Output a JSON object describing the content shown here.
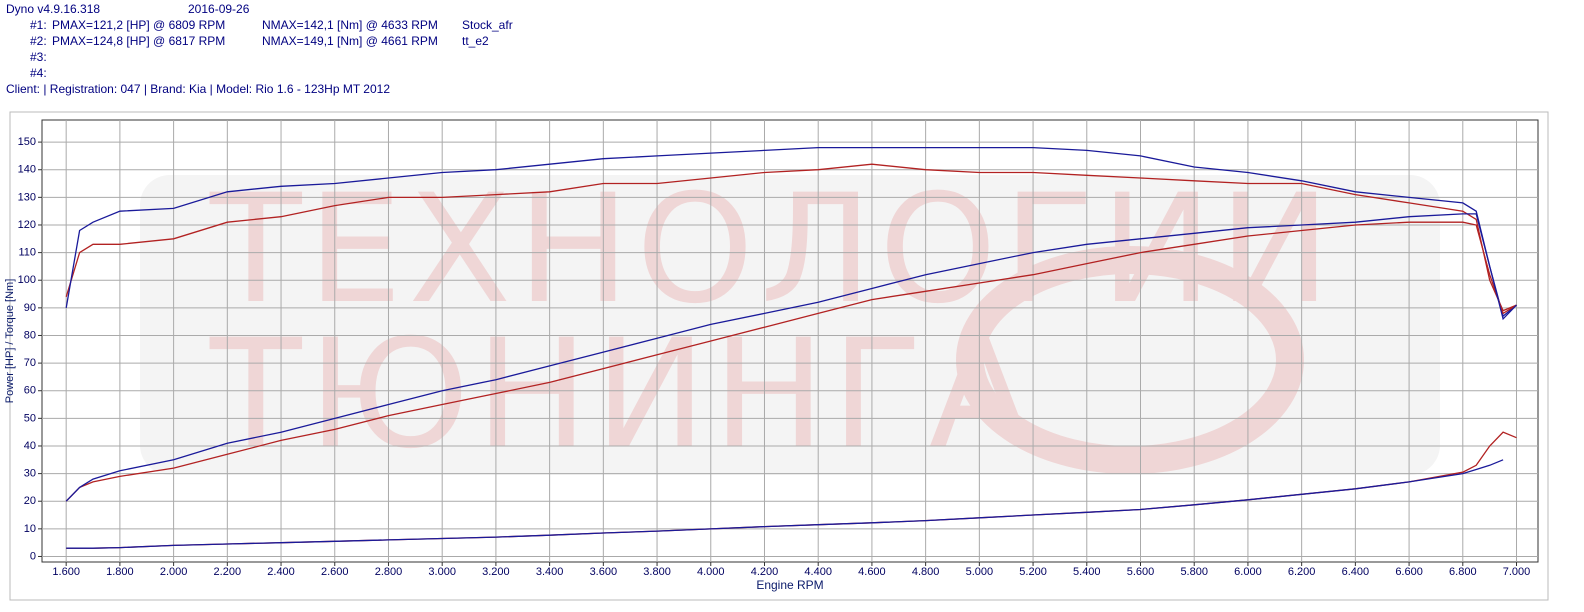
{
  "header": {
    "app": "Dyno v4.9.16.318",
    "date": "2016-09-26",
    "runs": [
      {
        "id": "#1:",
        "pmax": "PMAX=121,2 [HP] @ 6809 RPM",
        "nmax": "NMAX=142,1 [Nm] @ 4633 RPM",
        "name": "Stock_afr"
      },
      {
        "id": "#2:",
        "pmax": "PMAX=124,8 [HP] @ 6817 RPM",
        "nmax": "NMAX=149,1 [Nm] @ 4661 RPM",
        "name": "tt_e2"
      },
      {
        "id": "#3:"
      },
      {
        "id": "#4:"
      }
    ],
    "client": "Client:   | Registration: 047 | Brand: Kia | Model: Rio 1.6 - 123Hp MT 2012"
  },
  "watermark": [
    "ТЕХНОЛОГИИ",
    "ТЮНИНГА"
  ],
  "chart_data": {
    "type": "line",
    "x_label": "Engine RPM",
    "y_label": "Power [HP] / Torque [Nm]",
    "x": [
      1600,
      1650,
      1700,
      1800,
      2000,
      2200,
      2400,
      2600,
      2800,
      3000,
      3200,
      3400,
      3600,
      3800,
      4000,
      4200,
      4400,
      4600,
      4800,
      5000,
      5200,
      5400,
      5600,
      5800,
      6000,
      6200,
      6400,
      6600,
      6800,
      6850,
      6900,
      6950,
      7000
    ],
    "series": [
      {
        "color": "#b22222",
        "values": [
          94,
          110,
          113,
          113,
          115,
          121,
          123,
          127,
          130,
          130,
          131,
          132,
          135,
          135,
          137,
          139,
          140,
          142,
          140,
          139,
          139,
          138,
          137,
          136,
          135,
          135,
          131,
          128,
          125,
          122,
          100,
          89,
          91
        ]
      },
      {
        "color": "#1a1a9a",
        "values": [
          90,
          118,
          121,
          125,
          126,
          132,
          134,
          135,
          137,
          139,
          140,
          142,
          144,
          145,
          146,
          147,
          148,
          148,
          148,
          148,
          148,
          147,
          145,
          141,
          139,
          136,
          132,
          130,
          128,
          125,
          105,
          87,
          91
        ]
      },
      {
        "color": "#b22222",
        "values": [
          20,
          25,
          27,
          29,
          32,
          37,
          42,
          46,
          51,
          55,
          59,
          63,
          68,
          73,
          78,
          83,
          88,
          93,
          96,
          99,
          102,
          106,
          110,
          113,
          116,
          118,
          120,
          121,
          121,
          120,
          102,
          88,
          91
        ]
      },
      {
        "color": "#1a1a9a",
        "values": [
          20,
          25,
          28,
          31,
          35,
          41,
          45,
          50,
          55,
          60,
          64,
          69,
          74,
          79,
          84,
          88,
          92,
          97,
          102,
          106,
          110,
          113,
          115,
          117,
          119,
          120,
          121,
          123,
          124,
          124,
          105,
          86,
          91
        ]
      },
      {
        "color": "#b22222",
        "values": [
          3,
          3,
          3,
          3.2,
          4,
          4.5,
          5,
          5.5,
          6,
          6.5,
          7,
          7.7,
          8.5,
          9.2,
          10,
          10.8,
          11.5,
          12.2,
          13,
          14,
          15,
          16,
          17,
          18.7,
          20.5,
          22.5,
          24.5,
          27,
          30.5,
          33,
          40,
          45,
          43
        ]
      },
      {
        "color": "#1a1a9a",
        "values": [
          3,
          3,
          3,
          3.2,
          4,
          4.5,
          5,
          5.5,
          6,
          6.5,
          7,
          7.7,
          8.5,
          9.2,
          10,
          10.8,
          11.5,
          12.2,
          13,
          14,
          15,
          16,
          17,
          18.7,
          20.5,
          22.5,
          24.5,
          27,
          30,
          31.5,
          33,
          35,
          null
        ]
      }
    ],
    "xlim": [
      1510,
      7080
    ],
    "ylim": [
      -2,
      158
    ],
    "xticks": [
      {
        "value": 1600,
        "label": "1.600"
      },
      {
        "value": 1800,
        "label": "1.800"
      },
      {
        "value": 2000,
        "label": "2.000"
      },
      {
        "value": 2200,
        "label": "2.200"
      },
      {
        "value": 2400,
        "label": "2.400"
      },
      {
        "value": 2600,
        "label": "2.600"
      },
      {
        "value": 2800,
        "label": "2.800"
      },
      {
        "value": 3000,
        "label": "3.000"
      },
      {
        "value": 3200,
        "label": "3.200"
      },
      {
        "value": 3400,
        "label": "3.400"
      },
      {
        "value": 3600,
        "label": "3.600"
      },
      {
        "value": 3800,
        "label": "3.800"
      },
      {
        "value": 4000,
        "label": "4.000"
      },
      {
        "value": 4200,
        "label": "4.200"
      },
      {
        "value": 4400,
        "label": "4.400"
      },
      {
        "value": 4600,
        "label": "4.600"
      },
      {
        "value": 4800,
        "label": "4.800"
      },
      {
        "value": 5000,
        "label": "5.000"
      },
      {
        "value": 5200,
        "label": "5.200"
      },
      {
        "value": 5400,
        "label": "5.400"
      },
      {
        "value": 5600,
        "label": "5.600"
      },
      {
        "value": 5800,
        "label": "5.800"
      },
      {
        "value": 6000,
        "label": "6.000"
      },
      {
        "value": 6200,
        "label": "6.200"
      },
      {
        "value": 6400,
        "label": "6.400"
      },
      {
        "value": 6600,
        "label": "6.600"
      },
      {
        "value": 6800,
        "label": "6.800"
      },
      {
        "value": 7000,
        "label": "7.000"
      }
    ],
    "yticks": [
      0,
      10,
      20,
      30,
      40,
      50,
      60,
      70,
      80,
      90,
      100,
      110,
      120,
      130,
      140,
      150
    ],
    "grid": true
  }
}
